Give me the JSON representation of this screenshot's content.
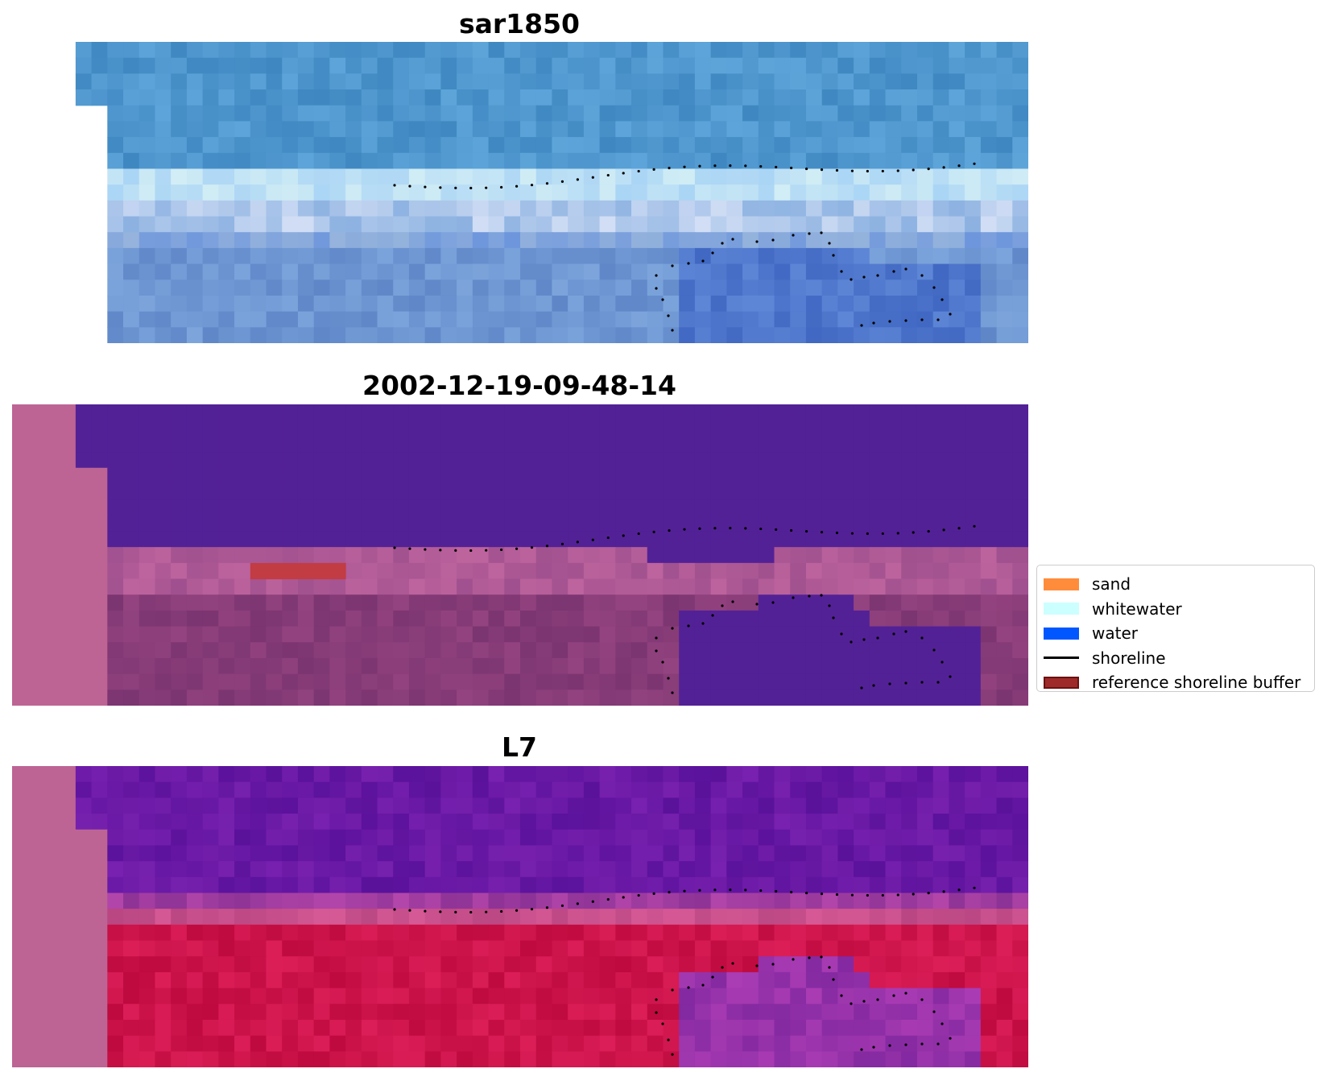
{
  "panels": [
    {
      "title": "sar1850",
      "kind": "rgb"
    },
    {
      "title": "2002-12-19-09-48-14",
      "kind": "classification"
    },
    {
      "title": "L7",
      "kind": "index"
    }
  ],
  "legend": {
    "items": [
      {
        "label": "sand",
        "color": "#ff8c3a",
        "type": "patch"
      },
      {
        "label": "whitewater",
        "color": "#ccffff",
        "type": "patch"
      },
      {
        "label": "water",
        "color": "#0057ff",
        "type": "patch"
      },
      {
        "label": "shoreline",
        "color": "#000000",
        "type": "line"
      },
      {
        "label": "reference shoreline buffer",
        "color": "#9e2a2a",
        "type": "patch",
        "edge": "#6b1111"
      }
    ]
  },
  "colors": {
    "nodata": "#bd6494",
    "class_water": "#532196",
    "class_buffer": "#c23c44",
    "shoreline_points": "#000000"
  }
}
